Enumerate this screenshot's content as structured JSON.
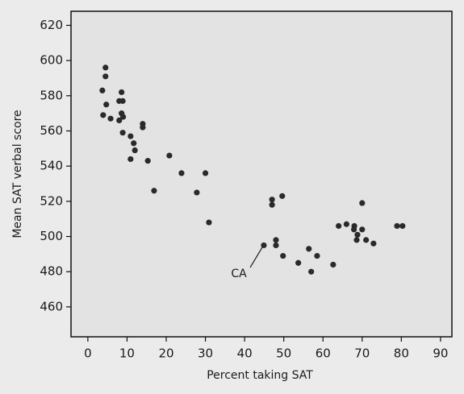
{
  "chart_data": {
    "type": "scatter",
    "x_label": "Percent taking SAT",
    "y_label": "Mean SAT verbal score",
    "annotation": "CA",
    "color": "#2a2a2a",
    "x": [
      4.5,
      4.5,
      3.7,
      4.7,
      3.9,
      5.8,
      8.6,
      8,
      8.9,
      8.6,
      8,
      9,
      8.9,
      10.9,
      11.7,
      12,
      10.9,
      14,
      14,
      15.3,
      20.8,
      23.9,
      30,
      16.9,
      27.8,
      30.9,
      44.9,
      47,
      47,
      49.6,
      48,
      48,
      49.8,
      53.7,
      56.4,
      57,
      58.5,
      62.6,
      64,
      66,
      68,
      67.9,
      68.8,
      68.6,
      70,
      70,
      71,
      72.9,
      78.9,
      80.3
    ],
    "y": [
      596,
      591,
      583,
      575,
      569,
      567,
      582,
      577,
      577,
      570,
      566,
      568,
      559,
      557,
      553,
      549,
      544,
      564,
      562,
      543,
      546,
      536,
      536,
      526,
      525,
      508,
      495,
      521,
      518,
      523,
      498,
      495,
      489,
      485,
      493,
      480,
      489,
      484,
      506,
      507,
      506,
      504,
      501,
      498,
      504,
      519,
      498,
      496,
      506,
      506
    ],
    "xlim": [
      -4.3,
      92.9
    ],
    "ylim": [
      443,
      628
    ],
    "xticks": [
      0,
      10,
      20,
      30,
      40,
      50,
      60,
      70,
      80,
      90
    ],
    "yticks": [
      460,
      480,
      500,
      520,
      540,
      560,
      580,
      600,
      620
    ]
  }
}
